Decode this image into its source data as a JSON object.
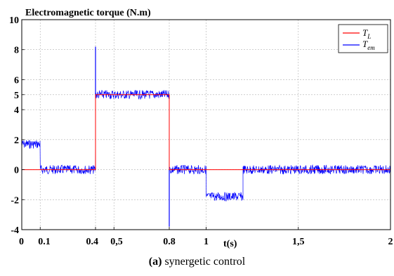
{
  "chart_data": {
    "type": "line",
    "title": "Electromagnetic torque (N.m)",
    "xlabel": "t(s)",
    "ylabel": "",
    "xlim": [
      0,
      2
    ],
    "ylim": [
      -4,
      10
    ],
    "grid": true,
    "x_ticks": [
      {
        "value": 0,
        "label": "0"
      },
      {
        "value": 0.1,
        "label": "0.1"
      },
      {
        "value": 0.4,
        "label": "0.4"
      },
      {
        "value": 0.5,
        "label": "0,5"
      },
      {
        "value": 0.8,
        "label": "0.8"
      },
      {
        "value": 1,
        "label": "1"
      },
      {
        "value": 1.5,
        "label": "1,5"
      },
      {
        "value": 2,
        "label": "2"
      }
    ],
    "y_ticks": [
      {
        "value": -4,
        "label": "-4"
      },
      {
        "value": -2,
        "label": "-2"
      },
      {
        "value": 0,
        "label": "0"
      },
      {
        "value": 2,
        "label": "2"
      },
      {
        "value": 4,
        "label": "4"
      },
      {
        "value": 5,
        "label": "5"
      },
      {
        "value": 6,
        "label": "6"
      },
      {
        "value": 8,
        "label": "8"
      },
      {
        "value": 10,
        "label": "10"
      }
    ],
    "legend_position": "top-right",
    "series": [
      {
        "name_main": "T",
        "name_sub": "L",
        "color": "#ff0000",
        "x": [
          0,
          0.1,
          0.1,
          0.4,
          0.4,
          0.8,
          0.8,
          1,
          1,
          1.2,
          1.2,
          2
        ],
        "y": [
          0,
          0,
          0,
          0,
          5,
          5,
          0,
          0,
          0,
          0,
          0,
          0
        ]
      },
      {
        "name_main": "T",
        "name_sub": "em",
        "color": "#0000ff",
        "segments": [
          {
            "x0": 0,
            "x1": 0.1,
            "mean": 1.7,
            "ripple": 0.6
          },
          {
            "x0": 0.1,
            "x1": 0.4,
            "mean": 0.0,
            "ripple": 0.6
          },
          {
            "x0": 0.4,
            "x1": 0.8,
            "mean": 5.0,
            "ripple": 0.6
          },
          {
            "x0": 0.8,
            "x1": 1.0,
            "mean": 0.0,
            "ripple": 0.6
          },
          {
            "x0": 1.0,
            "x1": 1.2,
            "mean": -1.8,
            "ripple": 0.6
          },
          {
            "x0": 1.2,
            "x1": 2.0,
            "mean": 0.0,
            "ripple": 0.6
          }
        ],
        "spikes": [
          {
            "x": 0.4,
            "peak": 8.2
          },
          {
            "x": 0.8,
            "peak": -3.8
          }
        ]
      }
    ]
  },
  "caption": {
    "label": "(a)",
    "text": " synergetic control"
  }
}
